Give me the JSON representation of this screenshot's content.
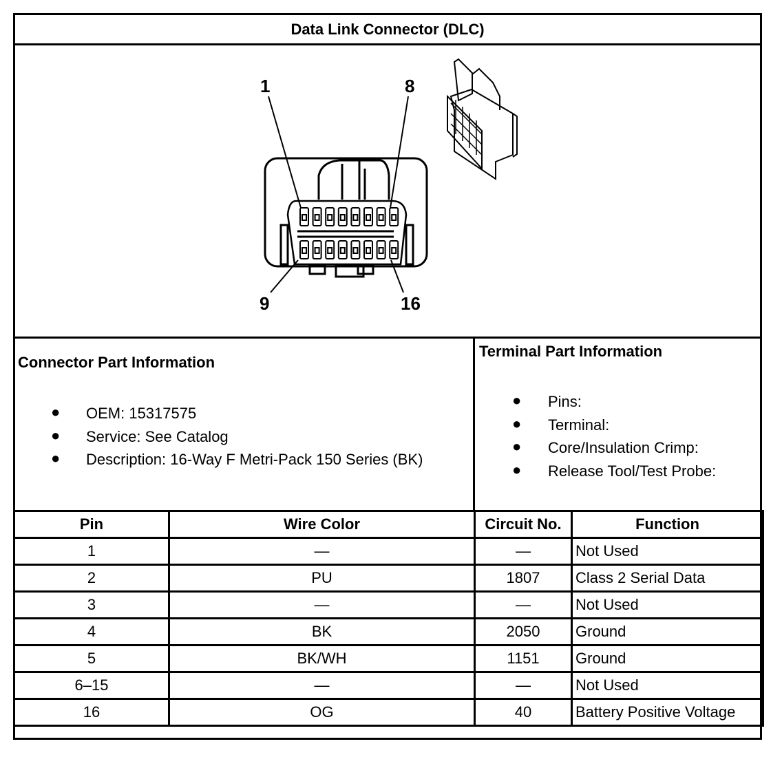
{
  "title": "Data Link Connector (DLC)",
  "diagram": {
    "labels": [
      "1",
      "8",
      "9",
      "16"
    ]
  },
  "connector_info": {
    "heading": "Connector Part Information",
    "items": [
      "OEM: 15317575",
      "Service: See Catalog",
      "Description: 16-Way F Metri-Pack 150 Series (BK)"
    ]
  },
  "terminal_info": {
    "heading": "Terminal Part Information",
    "items": [
      "Pins:",
      "Terminal:",
      "Core/Insulation Crimp:",
      "Release Tool/Test Probe:"
    ]
  },
  "bullet": "●",
  "table": {
    "headers": [
      "Pin",
      "Wire Color",
      "Circuit No.",
      "Function"
    ],
    "rows": [
      [
        "1",
        "—",
        "—",
        "Not Used"
      ],
      [
        "2",
        "PU",
        "1807",
        "Class 2 Serial Data"
      ],
      [
        "3",
        "—",
        "—",
        "Not Used"
      ],
      [
        "4",
        "BK",
        "2050",
        "Ground"
      ],
      [
        "5",
        "BK/WH",
        "1151",
        "Ground"
      ],
      [
        "6–15",
        "—",
        "—",
        "Not Used"
      ],
      [
        "16",
        "OG",
        "40",
        "Battery Positive Voltage"
      ]
    ]
  }
}
